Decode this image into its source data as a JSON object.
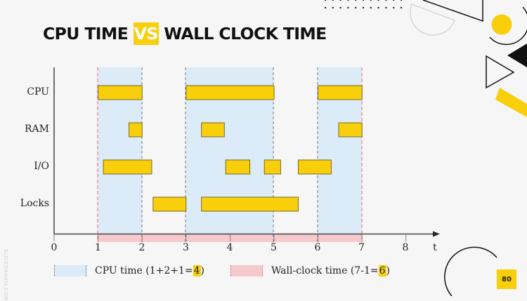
{
  "slide": {
    "title_part1": "CPU TIME ",
    "title_vs": "VS",
    "title_part2": " WALL CLOCK TIME",
    "page_number": "80",
    "watermark": "SLIDESMANIA.COM"
  },
  "colors": {
    "accent_yellow": "#f8cf0a",
    "cpu_region": "#dbebf8",
    "wall_region": "#f6c9cc",
    "wall_dash": "#e8818a",
    "cpu_dash": "#6f7a85",
    "background": "#f6f6f7"
  },
  "legend": {
    "cpu_label_prefix": "CPU time (1+2+1=",
    "cpu_value": "4",
    "cpu_label_suffix": ")",
    "wall_label_prefix": "Wall-clock time (7-1=",
    "wall_value": "6",
    "wall_label_suffix": ")"
  },
  "chart_data": {
    "type": "gantt",
    "title": "CPU TIME VS WALL CLOCK TIME",
    "xlabel": "t",
    "ylabel": "",
    "xlim": [
      0,
      8
    ],
    "x_ticks": [
      "0",
      "1",
      "2",
      "3",
      "4",
      "5",
      "6",
      "7",
      "8"
    ],
    "rows": [
      "CPU",
      "RAM",
      "I/O",
      "Locks"
    ],
    "bars": [
      {
        "row": "CPU",
        "start": 1.0,
        "end": 2.0
      },
      {
        "row": "CPU",
        "start": 3.0,
        "end": 5.0
      },
      {
        "row": "CPU",
        "start": 6.0,
        "end": 7.0
      },
      {
        "row": "RAM",
        "start": 1.7,
        "end": 2.0
      },
      {
        "row": "RAM",
        "start": 3.35,
        "end": 3.87
      },
      {
        "row": "RAM",
        "start": 6.47,
        "end": 7.0
      },
      {
        "row": "I/O",
        "start": 1.12,
        "end": 2.22
      },
      {
        "row": "I/O",
        "start": 3.9,
        "end": 4.45
      },
      {
        "row": "I/O",
        "start": 4.78,
        "end": 5.15
      },
      {
        "row": "I/O",
        "start": 5.55,
        "end": 6.3
      },
      {
        "row": "Locks",
        "start": 2.25,
        "end": 3.0
      },
      {
        "row": "Locks",
        "start": 3.35,
        "end": 5.55
      }
    ],
    "cpu_time_regions": [
      [
        1,
        2
      ],
      [
        3,
        5
      ],
      [
        6,
        7
      ]
    ],
    "wall_clock_region": [
      1,
      7
    ],
    "legend": [
      {
        "label": "CPU time (1+2+1=4)",
        "color": "#dbebf8"
      },
      {
        "label": "Wall-clock time (7-1=6)",
        "color": "#f6c9cc"
      }
    ],
    "grid": false
  }
}
